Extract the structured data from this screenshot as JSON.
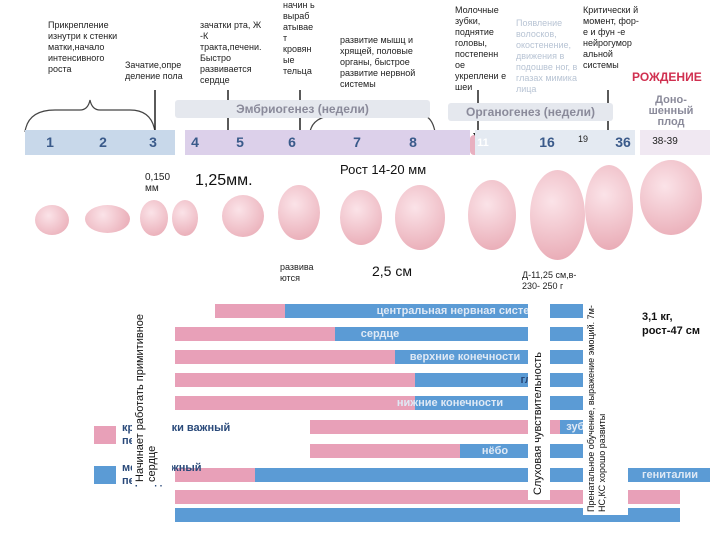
{
  "top_notes": {
    "attach": "Прикрепление изнутри к стенки матки,начало интенсивного роста",
    "sex": "Зачатие,опре деление пола",
    "mouth": "зачатки рта, Ж -К тракта,печени. Быстро развивается сердце",
    "blood": "начин ь выраб атывае т кровян ые тельца",
    "muscles": "развитие мышц и хрящей, половые органы, быстрое развитие нервной системы",
    "teeth": "Молочные зубки, поднятие головы, постепенн ое укреплени е шеи",
    "faded": "Появление волосков, окостенение, движения в подошве ног, в глазах мимика лица",
    "critical": "Критически й момент, фор-е и фун -е нейрогумор альной системы",
    "birth": "РОЖДЕНИЕ"
  },
  "headers": {
    "embryo": "Эмбриогенез (недели)",
    "organo": "Органогенез (недели)",
    "full": "Доно- шенный плод"
  },
  "weeks": [
    "1",
    "2",
    "3",
    "4",
    "5",
    "6",
    "7",
    "8",
    "11",
    "16",
    "19",
    "36",
    "38-39"
  ],
  "sizes": {
    "s1": "0,150 мм",
    "s2": "1,25мм.",
    "s3": "Рост 14-20 мм",
    "s4": "2,5 см",
    "s5": "Д-11,25 см,в- 230- 250 г",
    "s6": "3,1 кг, рост-47 см",
    "develops": "развива ются"
  },
  "organs": [
    "центральная нервная система",
    "сердце",
    "верхние конечности",
    "глаза",
    "нижние конечности",
    "зубы",
    "нёбо",
    "гениталии"
  ],
  "legend": {
    "pink": "критически важный период",
    "blue": "менее важный период"
  },
  "vertical": {
    "heart": "Начинает работать примитивное сердце",
    "hearing": "Слуховая чувствительность",
    "prenatal": "Пренатальное обучение, выражение эмоций. 7м-НС,КС хорошо развиты"
  },
  "colors": {
    "blue": "#5b9bd5",
    "pink": "#e8a0b8",
    "birth": "#d03050"
  }
}
